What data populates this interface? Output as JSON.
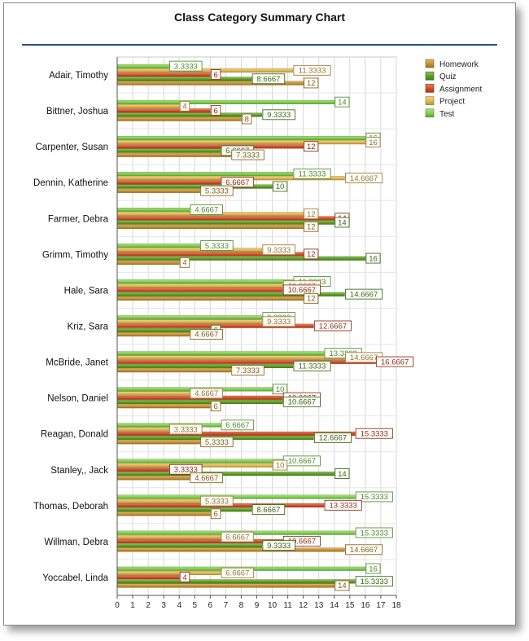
{
  "chart_data": {
    "type": "bar",
    "orientation": "horizontal",
    "title": "Class Category Summary Chart",
    "xlabel": "",
    "ylabel": "",
    "xlim": [
      0,
      18
    ],
    "xticks": [
      "0",
      "1",
      "2",
      "3",
      "4",
      "5",
      "6",
      "7",
      "8",
      "9",
      "10",
      "11",
      "12",
      "13",
      "14",
      "15",
      "16",
      "17",
      "18"
    ],
    "grid": true,
    "legend_position": "top-right",
    "categories": [
      "Adair, Timothy",
      "Bittner, Joshua",
      "Carpenter, Susan",
      "Dennin, Katherine",
      "Farmer, Debra",
      "Grimm, Timothy",
      "Hale, Sara",
      "Kriz, Sara",
      "McBride, Janet",
      "Nelson, Daniel",
      "Reagan, Donald",
      "Stanley,, Jack",
      "Thomas, Deborah",
      "Willman, Debra",
      "Yoccabel, Linda"
    ],
    "series": [
      {
        "name": "Test",
        "color": "#7cd04a",
        "values": [
          3.3333,
          14,
          16,
          11.3333,
          4.6667,
          5.3333,
          11.3333,
          9.3333,
          13.3333,
          10,
          6.6667,
          10.6667,
          15.3333,
          15.3333,
          16
        ],
        "labels": [
          "3.3333",
          "14",
          "16",
          "11.3333",
          "4.6667",
          "5.3333",
          "11.3333",
          "9.3333",
          "13.3333",
          "10",
          "6.6667",
          "10.6667",
          "15.3333",
          "15.3333",
          "16"
        ]
      },
      {
        "name": "Project",
        "color": "#e3b84e",
        "values": [
          11.3333,
          4,
          16,
          14.6667,
          12,
          9.3333,
          10.6667,
          9.3333,
          14.6667,
          4.6667,
          3.3333,
          10,
          5.3333,
          6.6667,
          6.6667
        ],
        "labels": [
          "11.3333",
          "4",
          "16",
          "14.6667",
          "12",
          "9.3333",
          "10.6667",
          "9.3333",
          "14.6667",
          "4.6667",
          "3.3333",
          "10",
          "5.3333",
          "6.6667",
          "6.6667"
        ]
      },
      {
        "name": "Assignment",
        "color": "#d24a22",
        "values": [
          6,
          6,
          12,
          6.6667,
          14,
          12,
          10.6667,
          12.6667,
          16.6667,
          10.6667,
          15.3333,
          3.3333,
          13.3333,
          10.6667,
          4
        ],
        "labels": [
          "6",
          "6",
          "12",
          "6.6667",
          "14",
          "12",
          "10.6667",
          "12.6667",
          "16.6667",
          "10.6667",
          "15.3333",
          "3.3333",
          "13.3333",
          "10.6667",
          "4"
        ]
      },
      {
        "name": "Quiz",
        "color": "#5a9e1e",
        "values": [
          8.6667,
          9.3333,
          6.6667,
          10,
          14,
          16,
          14.6667,
          6,
          11.3333,
          10.6667,
          12.6667,
          14,
          8.6667,
          9.3333,
          15.3333
        ],
        "labels": [
          "8.6667",
          "9.3333",
          "6.6667",
          "10",
          "14",
          "16",
          "14.6667",
          "6",
          "11.3333",
          "10.6667",
          "12.6667",
          "14",
          "8.6667",
          "9.3333",
          "15.3333"
        ]
      },
      {
        "name": "Homework",
        "color": "#c8902c",
        "values": [
          12,
          8,
          7.3333,
          5.3333,
          12,
          4,
          12,
          4.6667,
          7.3333,
          6,
          5.3333,
          4.6667,
          6,
          14.6667,
          14
        ],
        "labels": [
          "12",
          "8",
          "7.3333",
          "5.3333",
          "12",
          "4",
          "12",
          "4.6667",
          "7.3333",
          "6",
          "5.3333",
          "4.6667",
          "6",
          "14.6667",
          "14"
        ]
      }
    ],
    "legend_order": [
      "Homework",
      "Quiz",
      "Assignment",
      "Project",
      "Test"
    ]
  }
}
